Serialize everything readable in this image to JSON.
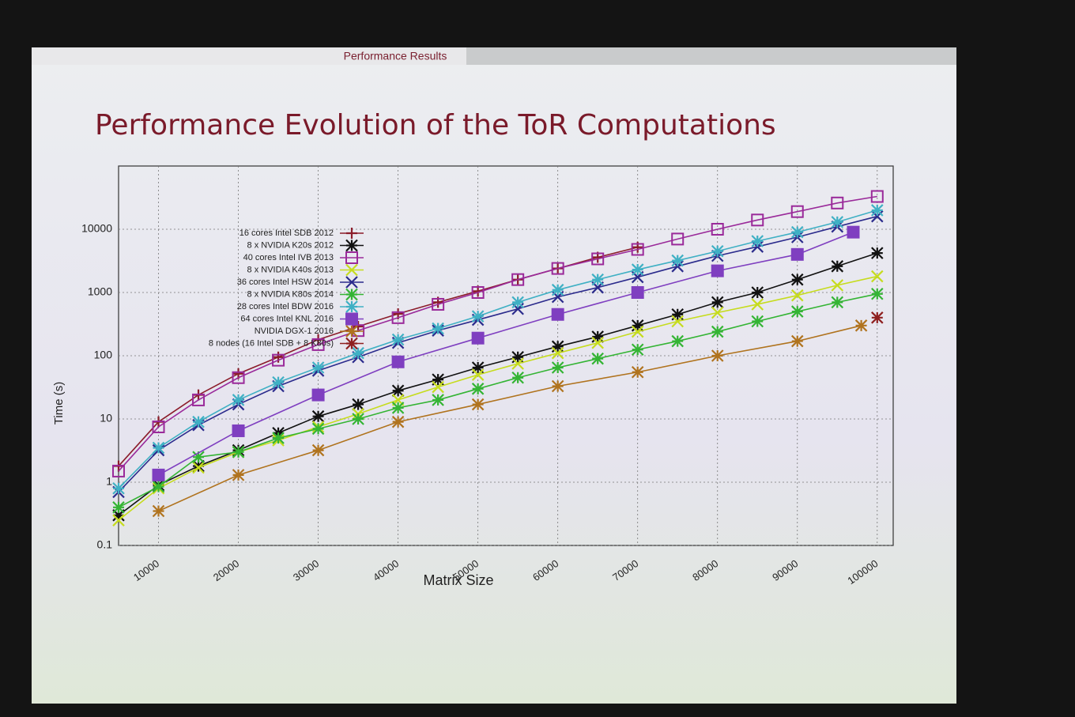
{
  "header": "Performance Results",
  "chart_data": {
    "type": "line",
    "title": "Performance Evolution of the ToR Computations",
    "xlabel": "Matrix Size",
    "ylabel": "Time (s)",
    "xlim": [
      5000,
      102000
    ],
    "xticks": [
      10000,
      20000,
      30000,
      40000,
      50000,
      60000,
      70000,
      80000,
      90000,
      100000
    ],
    "ylim": [
      0.1,
      100000
    ],
    "yticks": [
      0.1,
      1,
      10,
      100,
      1000,
      10000
    ],
    "log_y": true,
    "grid": true,
    "legend": "upper left",
    "series": [
      {
        "name": "16 cores Intel SDB 2012",
        "color": "#8b1c2a",
        "marker": "plus",
        "x": [
          5000,
          10000,
          15000,
          20000,
          25000,
          30000,
          35000,
          40000,
          45000,
          50000,
          55000,
          60000,
          65000,
          70000
        ],
        "values": [
          1.8,
          9,
          24,
          52,
          95,
          180,
          290,
          460,
          700,
          1050,
          1600,
          2400,
          3600,
          5200
        ]
      },
      {
        "name": "8 x NVIDIA K20s 2012",
        "color": "#111111",
        "marker": "star",
        "x": [
          5000,
          10000,
          15000,
          20000,
          25000,
          30000,
          35000,
          40000,
          45000,
          50000,
          55000,
          60000,
          65000,
          70000,
          75000,
          80000,
          85000,
          90000,
          95000,
          100000
        ],
        "values": [
          0.3,
          0.9,
          1.8,
          3.2,
          6,
          11,
          17,
          28,
          42,
          65,
          95,
          140,
          200,
          300,
          450,
          700,
          1000,
          1600,
          2600,
          4200
        ]
      },
      {
        "name": "40 cores Intel IVB 2013",
        "color": "#9a2a9a",
        "marker": "square-open",
        "x": [
          5000,
          10000,
          15000,
          20000,
          25000,
          30000,
          35000,
          40000,
          45000,
          50000,
          55000,
          60000,
          65000,
          70000,
          75000,
          80000,
          85000,
          90000,
          95000,
          100000
        ],
        "values": [
          1.5,
          7.5,
          20,
          45,
          85,
          150,
          250,
          400,
          650,
          1000,
          1600,
          2400,
          3400,
          4800,
          7000,
          10000,
          14000,
          19000,
          26000,
          33000
        ]
      },
      {
        "name": "8 x NVIDIA K40s 2013",
        "color": "#c6dc1e",
        "marker": "x",
        "x": [
          5000,
          10000,
          15000,
          20000,
          25000,
          30000,
          35000,
          40000,
          45000,
          50000,
          55000,
          60000,
          65000,
          70000,
          75000,
          80000,
          85000,
          90000,
          95000,
          100000
        ],
        "values": [
          0.25,
          0.8,
          1.7,
          3,
          4.6,
          7.5,
          12,
          20,
          32,
          50,
          75,
          110,
          160,
          240,
          350,
          480,
          650,
          900,
          1300,
          1800
        ]
      },
      {
        "name": "36 cores Intel HSW 2014",
        "color": "#2b2b8c",
        "marker": "x",
        "x": [
          5000,
          10000,
          15000,
          20000,
          25000,
          30000,
          35000,
          40000,
          45000,
          50000,
          55000,
          60000,
          65000,
          70000,
          75000,
          80000,
          85000,
          90000,
          95000,
          100000
        ],
        "values": [
          0.7,
          3.2,
          8,
          17,
          33,
          58,
          95,
          160,
          250,
          370,
          550,
          850,
          1200,
          1750,
          2600,
          3800,
          5300,
          7500,
          11000,
          16000
        ]
      },
      {
        "name": "8 x NVIDIA K80s 2014",
        "color": "#34b434",
        "marker": "star",
        "x": [
          5000,
          10000,
          15000,
          20000,
          25000,
          30000,
          35000,
          40000,
          45000,
          50000,
          55000,
          60000,
          65000,
          70000,
          75000,
          80000,
          85000,
          90000,
          95000,
          100000
        ],
        "values": [
          0.4,
          0.85,
          2.5,
          3,
          5,
          7,
          10,
          15,
          20,
          30,
          45,
          65,
          90,
          125,
          170,
          240,
          350,
          500,
          700,
          950
        ]
      },
      {
        "name": "28 cores Intel BDW 2016",
        "color": "#3fb0c4",
        "marker": "star",
        "x": [
          5000,
          10000,
          15000,
          20000,
          25000,
          30000,
          35000,
          40000,
          45000,
          50000,
          55000,
          60000,
          65000,
          70000,
          75000,
          80000,
          85000,
          90000,
          95000,
          100000
        ],
        "values": [
          0.8,
          3.5,
          9,
          20,
          38,
          65,
          110,
          180,
          270,
          420,
          700,
          1100,
          1600,
          2300,
          3200,
          4500,
          6500,
          9000,
          13000,
          20000
        ]
      },
      {
        "name": "64 cores Intel KNL 2016",
        "color": "#7f3fc0",
        "marker": "square-filled",
        "x": [
          10000,
          20000,
          30000,
          40000,
          50000,
          60000,
          70000,
          80000,
          90000,
          97000
        ],
        "values": [
          1.3,
          6.5,
          24,
          80,
          190,
          450,
          1000,
          2200,
          4000,
          9000
        ]
      },
      {
        "name": "NVIDIA DGX-1 2016",
        "color": "#b0731e",
        "marker": "star",
        "x": [
          10000,
          20000,
          30000,
          40000,
          50000,
          60000,
          70000,
          80000,
          90000,
          98000
        ],
        "values": [
          0.35,
          1.3,
          3.2,
          9,
          17,
          33,
          55,
          100,
          170,
          300
        ]
      },
      {
        "name": "8 nodes (16 Intel SDB + 8 K80s)",
        "color": "#8e1f1f",
        "marker": "star",
        "x": [
          100000
        ],
        "values": [
          400
        ]
      }
    ]
  }
}
